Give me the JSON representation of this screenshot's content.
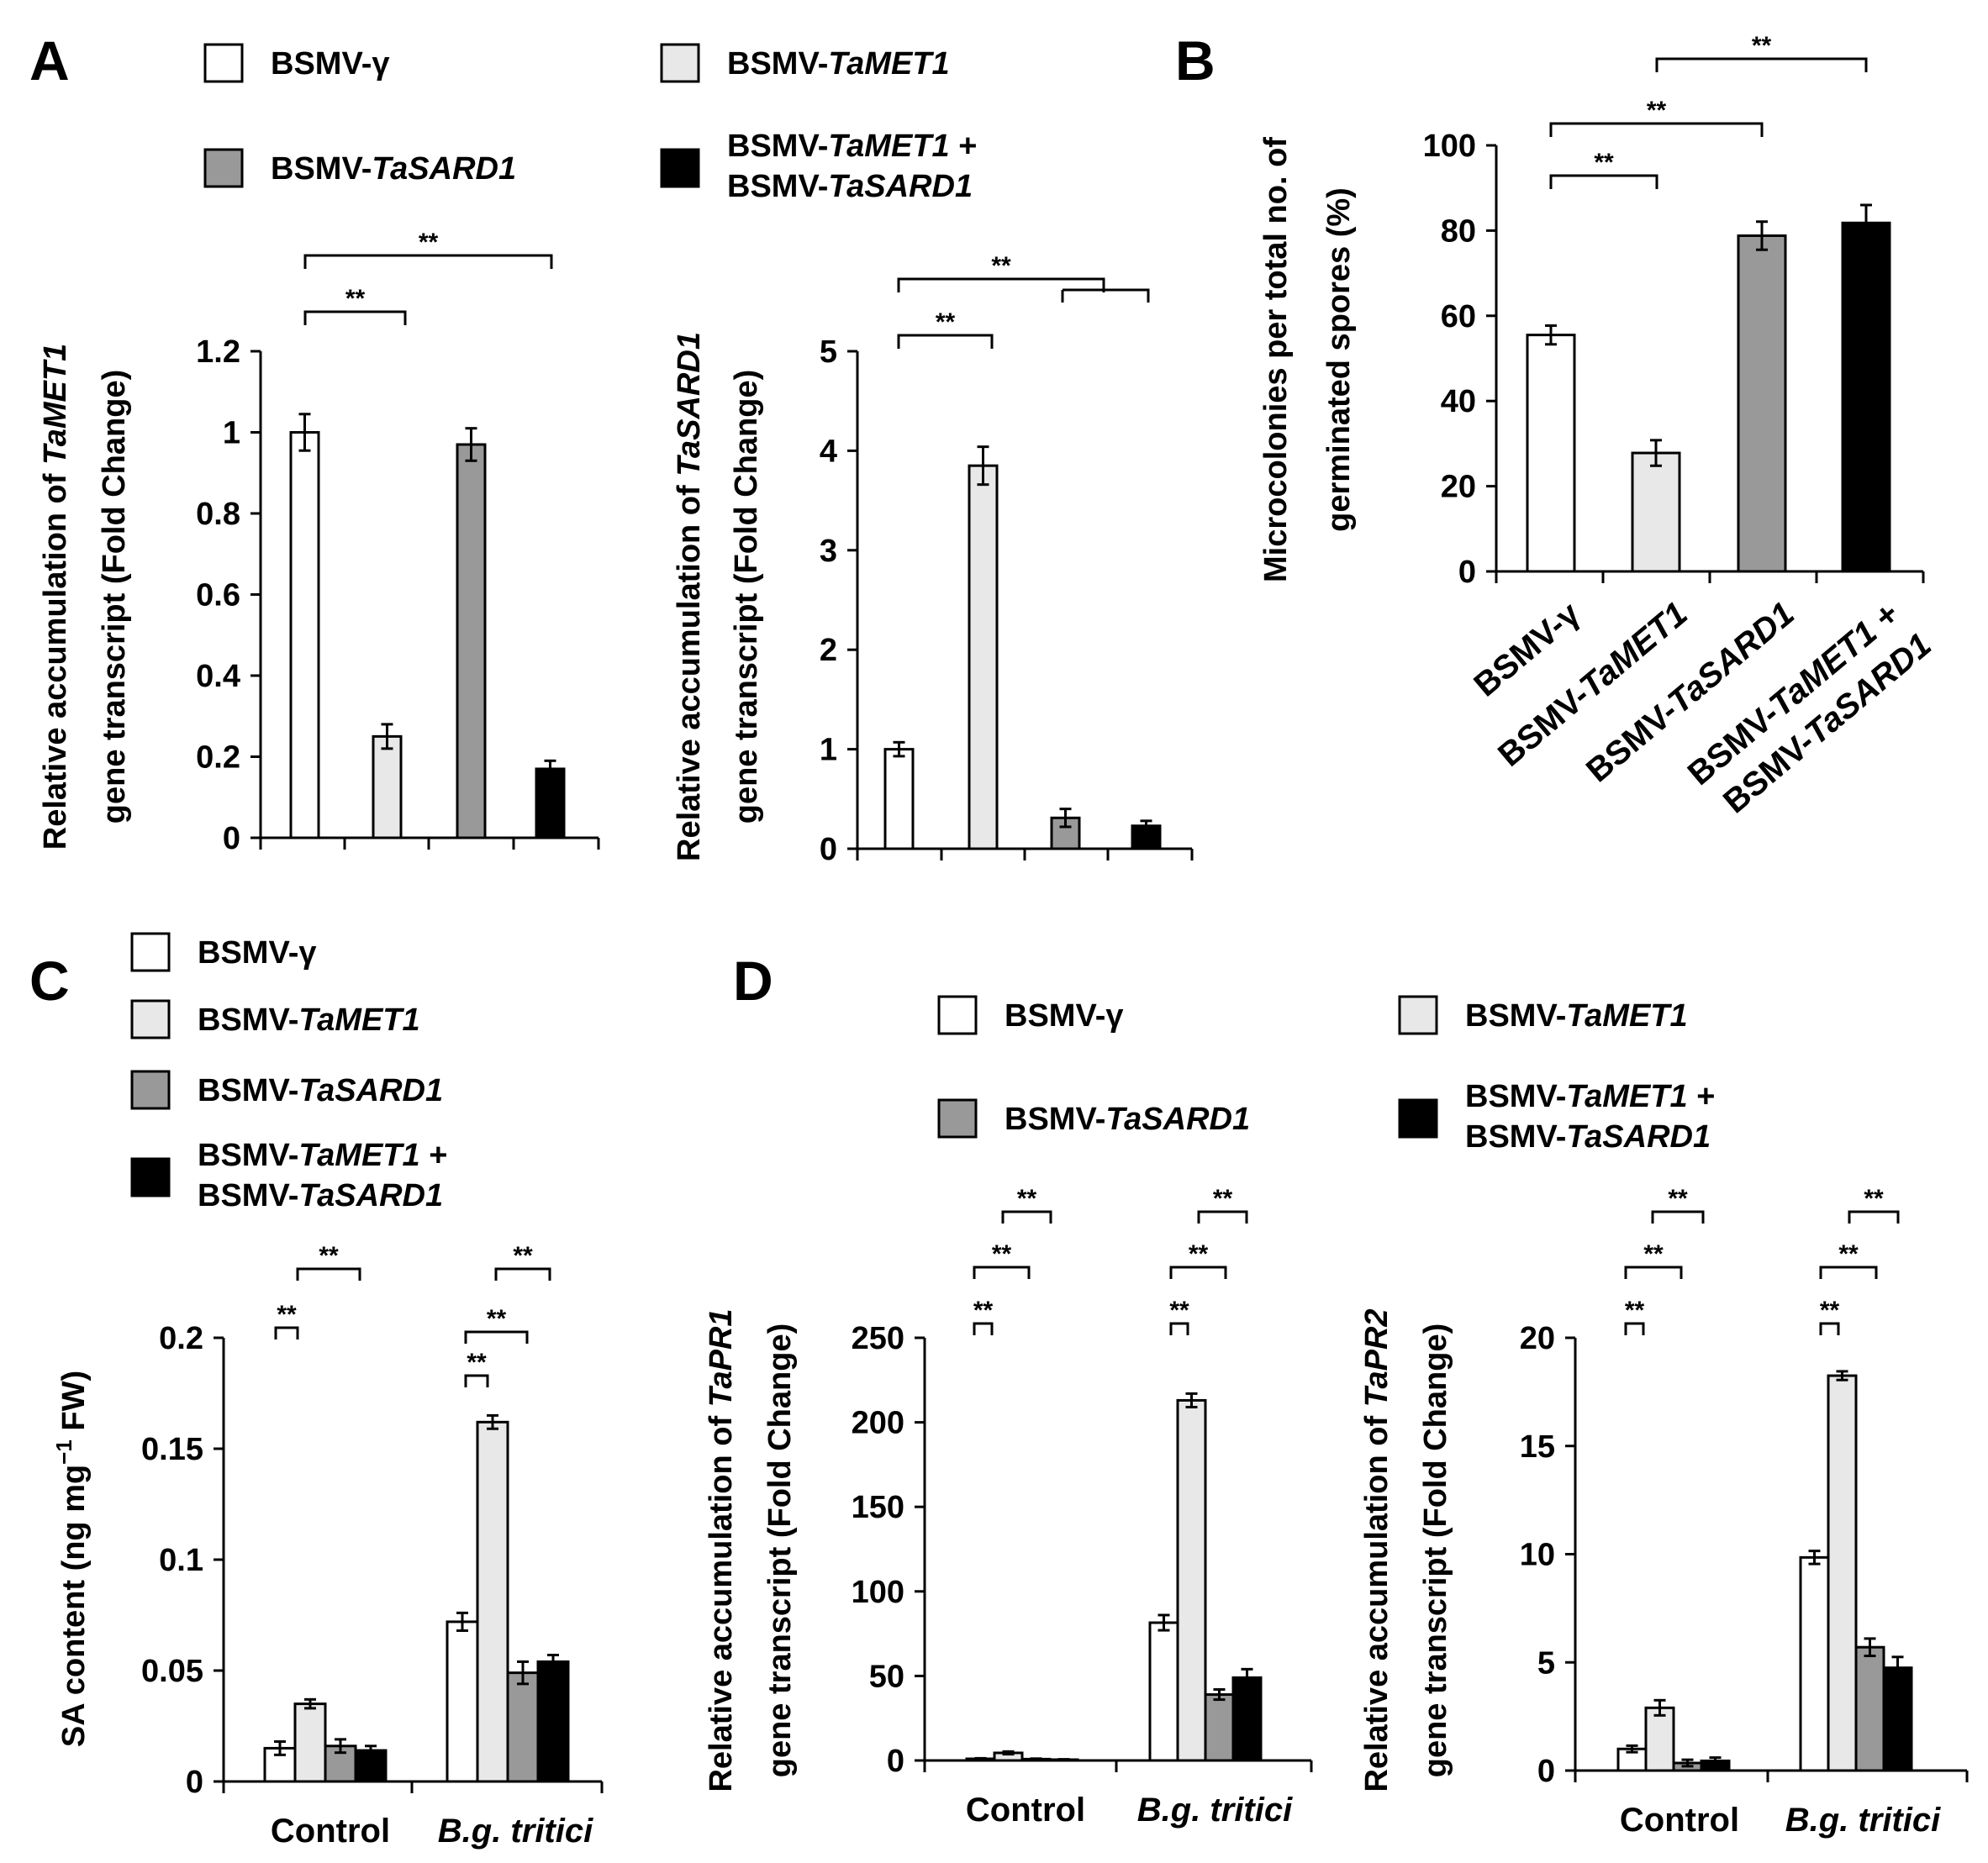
{
  "panels": {
    "A": "A",
    "B": "B",
    "C": "C",
    "D": "D"
  },
  "series_colors": [
    "#ffffff",
    "#e8e8e8",
    "#999999",
    "#000000"
  ],
  "legend_A": [
    {
      "parts": [
        {
          "t": "BSMV-γ"
        }
      ]
    },
    {
      "parts": [
        {
          "t": "BSMV-"
        },
        {
          "t": "TaMET1",
          "i": true
        }
      ]
    },
    {
      "parts": [
        {
          "t": "BSMV-"
        },
        {
          "t": "TaSARD1",
          "i": true
        }
      ]
    },
    {
      "parts": [
        {
          "t": "BSMV-"
        },
        {
          "t": "TaMET1",
          "i": true
        },
        {
          "t": " +"
        }
      ],
      "line2": [
        {
          "t": "BSMV-"
        },
        {
          "t": "TaSARD1",
          "i": true
        }
      ]
    }
  ],
  "legend_C": [
    {
      "parts": [
        {
          "t": "BSMV-γ"
        }
      ]
    },
    {
      "parts": [
        {
          "t": "BSMV-"
        },
        {
          "t": "TaMET1",
          "i": true
        }
      ]
    },
    {
      "parts": [
        {
          "t": "BSMV-"
        },
        {
          "t": "TaSARD1",
          "i": true
        }
      ]
    },
    {
      "parts": [
        {
          "t": "BSMV-"
        },
        {
          "t": "TaMET1",
          "i": true
        },
        {
          "t": " +"
        }
      ],
      "line2": [
        {
          "t": "BSMV-"
        },
        {
          "t": "TaSARD1",
          "i": true
        }
      ]
    }
  ],
  "legend_D": [
    {
      "parts": [
        {
          "t": "BSMV-γ"
        }
      ]
    },
    {
      "parts": [
        {
          "t": "BSMV-"
        },
        {
          "t": "TaMET1",
          "i": true
        }
      ]
    },
    {
      "parts": [
        {
          "t": "BSMV-"
        },
        {
          "t": "TaSARD1",
          "i": true
        }
      ]
    },
    {
      "parts": [
        {
          "t": "BSMV-"
        },
        {
          "t": "TaMET1",
          "i": true
        },
        {
          "t": " +"
        }
      ],
      "line2": [
        {
          "t": "BSMV-"
        },
        {
          "t": "TaSARD1",
          "i": true
        }
      ]
    }
  ],
  "chart_data": [
    {
      "id": "A1",
      "type": "bar",
      "ylabel_line1": [
        {
          "t": "Relative accumulation of "
        },
        {
          "t": "TaMET1",
          "i": true
        }
      ],
      "ylabel_line2": [
        {
          "t": "gene transcript  (Fold Change)"
        }
      ],
      "ylim": [
        0,
        1.2
      ],
      "yticks": [
        "0",
        "0.2",
        "0.4",
        "0.6",
        "0.8",
        "1",
        "1.2"
      ],
      "values": [
        1.0,
        0.25,
        0.97,
        0.17
      ],
      "errors": [
        0.045,
        0.03,
        0.04,
        0.02
      ],
      "significance": [
        "**",
        "**"
      ]
    },
    {
      "id": "A2",
      "type": "bar",
      "ylabel_line1": [
        {
          "t": "Relative accumulation of "
        },
        {
          "t": "TaSARD1",
          "i": true
        }
      ],
      "ylabel_line2": [
        {
          "t": "gene transcript  (Fold Change)"
        }
      ],
      "ylim": [
        0,
        5
      ],
      "yticks": [
        "0",
        "1",
        "2",
        "3",
        "4",
        "5"
      ],
      "values": [
        1.0,
        3.85,
        0.31,
        0.23
      ],
      "errors": [
        0.07,
        0.19,
        0.09,
        0.05
      ],
      "significance": [
        "**",
        "**"
      ]
    },
    {
      "id": "B",
      "type": "bar",
      "ylabel_line1": [
        {
          "t": "Microcolonies per total no. of"
        }
      ],
      "ylabel_line2": [
        {
          "t": "germinated spores (%)"
        }
      ],
      "ylim": [
        0,
        100
      ],
      "yticks": [
        "0",
        "20",
        "40",
        "60",
        "80",
        "100"
      ],
      "categories": [
        [
          {
            "t": "BSMV-γ"
          }
        ],
        [
          {
            "t": "BSMV-"
          },
          {
            "t": "TaMET1",
            "i": true
          }
        ],
        [
          {
            "t": "BSMV-"
          },
          {
            "t": "TaSARD1",
            "i": true
          }
        ],
        [
          {
            "t": "BSMV-"
          },
          {
            "t": "TaMET1",
            "i": true
          },
          {
            "t": " +"
          }
        ]
      ],
      "category4_line2": [
        {
          "t": "BSMV-"
        },
        {
          "t": "TaSARD1",
          "i": true
        }
      ],
      "values": [
        55.5,
        27.8,
        78.8,
        81.8
      ],
      "errors": [
        2.2,
        3.0,
        3.3,
        4.2
      ],
      "significance": [
        "**",
        "**",
        "**"
      ]
    },
    {
      "id": "C",
      "type": "bar",
      "ylabel_line1": [
        {
          "t": "SA content (ng mg"
        },
        {
          "t": "−1",
          "sup": true
        },
        {
          "t": " FW)"
        }
      ],
      "ylim": [
        0,
        0.2
      ],
      "yticks": [
        "0",
        "0.05",
        "0.1",
        "0.15",
        "0.2"
      ],
      "groups": [
        [
          {
            "t": "Control"
          }
        ],
        [
          {
            "t": "B.g. tritici",
            "i": true
          }
        ]
      ],
      "series_values": [
        [
          0.015,
          0.035,
          0.016,
          0.014
        ],
        [
          0.072,
          0.162,
          0.049,
          0.054
        ]
      ],
      "series_errors": [
        [
          0.003,
          0.002,
          0.003,
          0.002
        ],
        [
          0.004,
          0.003,
          0.005,
          0.003
        ]
      ],
      "significance": [
        "**",
        "**",
        "**",
        "**",
        "**",
        "**"
      ]
    },
    {
      "id": "D1",
      "type": "bar",
      "ylabel_line1": [
        {
          "t": "Relative accumulation of "
        },
        {
          "t": "TaPR1",
          "i": true
        }
      ],
      "ylabel_line2": [
        {
          "t": "gene transcript  (Fold Change)"
        }
      ],
      "ylim": [
        0,
        250
      ],
      "yticks": [
        "0",
        "50",
        "100",
        "150",
        "200",
        "250"
      ],
      "groups": [
        [
          {
            "t": "Control"
          }
        ],
        [
          {
            "t": "B.g. tritici",
            "i": true
          }
        ]
      ],
      "series_values": [
        [
          1.0,
          4.5,
          0.8,
          0.5
        ],
        [
          81.5,
          213,
          39,
          49
        ]
      ],
      "series_errors": [
        [
          0.3,
          0.8,
          0.3,
          0.2
        ],
        [
          4.5,
          4.0,
          3.0,
          5.0
        ]
      ],
      "significance": [
        "**",
        "**",
        "**",
        "**",
        "**",
        "**"
      ]
    },
    {
      "id": "D2",
      "type": "bar",
      "ylabel_line1": [
        {
          "t": "Relative accumulation of "
        },
        {
          "t": "TaPR2",
          "i": true
        }
      ],
      "ylabel_line2": [
        {
          "t": "gene transcript  (Fold Change)"
        }
      ],
      "ylim": [
        0,
        20
      ],
      "yticks": [
        "0",
        "5",
        "10",
        "15",
        "20"
      ],
      "groups": [
        [
          {
            "t": "Control"
          }
        ],
        [
          {
            "t": "B.g. tritici",
            "i": true
          }
        ]
      ],
      "series_values": [
        [
          1.0,
          2.9,
          0.35,
          0.45
        ],
        [
          9.85,
          18.25,
          5.7,
          4.75
        ]
      ],
      "series_errors": [
        [
          0.15,
          0.35,
          0.15,
          0.15
        ],
        [
          0.3,
          0.2,
          0.4,
          0.5
        ]
      ],
      "significance": [
        "**",
        "**",
        "**",
        "**",
        "**",
        "**"
      ]
    }
  ]
}
